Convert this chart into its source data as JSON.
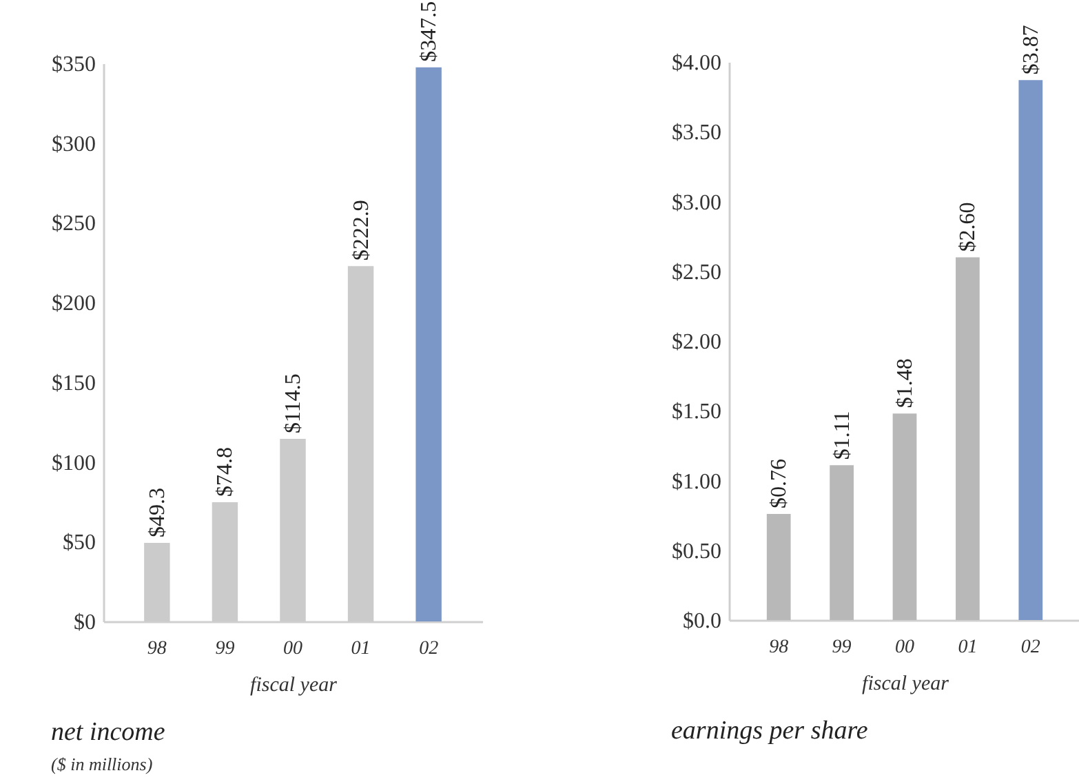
{
  "chart_data": [
    {
      "type": "bar",
      "title": "net income",
      "subtitle": "($ in millions)",
      "xlabel": "fiscal year",
      "categories": [
        "98",
        "99",
        "00",
        "01",
        "02"
      ],
      "values": [
        49.3,
        74.8,
        114.5,
        222.9,
        347.5
      ],
      "colors": [
        "#cbcbcb",
        "#cbcbcb",
        "#cbcbcb",
        "#cbcbcb",
        "#7b97c8"
      ],
      "value_labels": [
        "$49.3",
        "$74.8",
        "$114.5",
        "$222.9",
        "$347.5"
      ],
      "ylim": [
        0,
        350
      ],
      "yticks": [
        {
          "value": 0,
          "label": "$0"
        },
        {
          "value": 50,
          "label": "$50"
        },
        {
          "value": 100,
          "label": "$100"
        },
        {
          "value": 150,
          "label": "$150"
        },
        {
          "value": 200,
          "label": "$200"
        },
        {
          "value": 250,
          "label": "$250"
        },
        {
          "value": 300,
          "label": "$300"
        },
        {
          "value": 350,
          "label": "$350"
        }
      ],
      "grid": false,
      "legend": false
    },
    {
      "type": "bar",
      "title": "earnings per share",
      "xlabel": "fiscal year",
      "categories": [
        "98",
        "99",
        "00",
        "01",
        "02"
      ],
      "values": [
        0.76,
        1.11,
        1.48,
        2.6,
        3.87
      ],
      "colors": [
        "#b8b8b8",
        "#b8b8b8",
        "#b8b8b8",
        "#b8b8b8",
        "#7b97c8"
      ],
      "value_labels": [
        "$0.76",
        "$1.11",
        "$1.48",
        "$2.60",
        "$3.87"
      ],
      "ylim": [
        0,
        4
      ],
      "yticks": [
        {
          "value": 0,
          "label": "$0.0"
        },
        {
          "value": 0.5,
          "label": "$0.50"
        },
        {
          "value": 1,
          "label": "$1.00"
        },
        {
          "value": 1.5,
          "label": "$1.50"
        },
        {
          "value": 2,
          "label": "$2.00"
        },
        {
          "value": 2.5,
          "label": "$2.50"
        },
        {
          "value": 3,
          "label": "$3.00"
        },
        {
          "value": 3.5,
          "label": "$3.50"
        },
        {
          "value": 4,
          "label": "$4.00"
        }
      ],
      "grid": false,
      "legend": false
    }
  ]
}
